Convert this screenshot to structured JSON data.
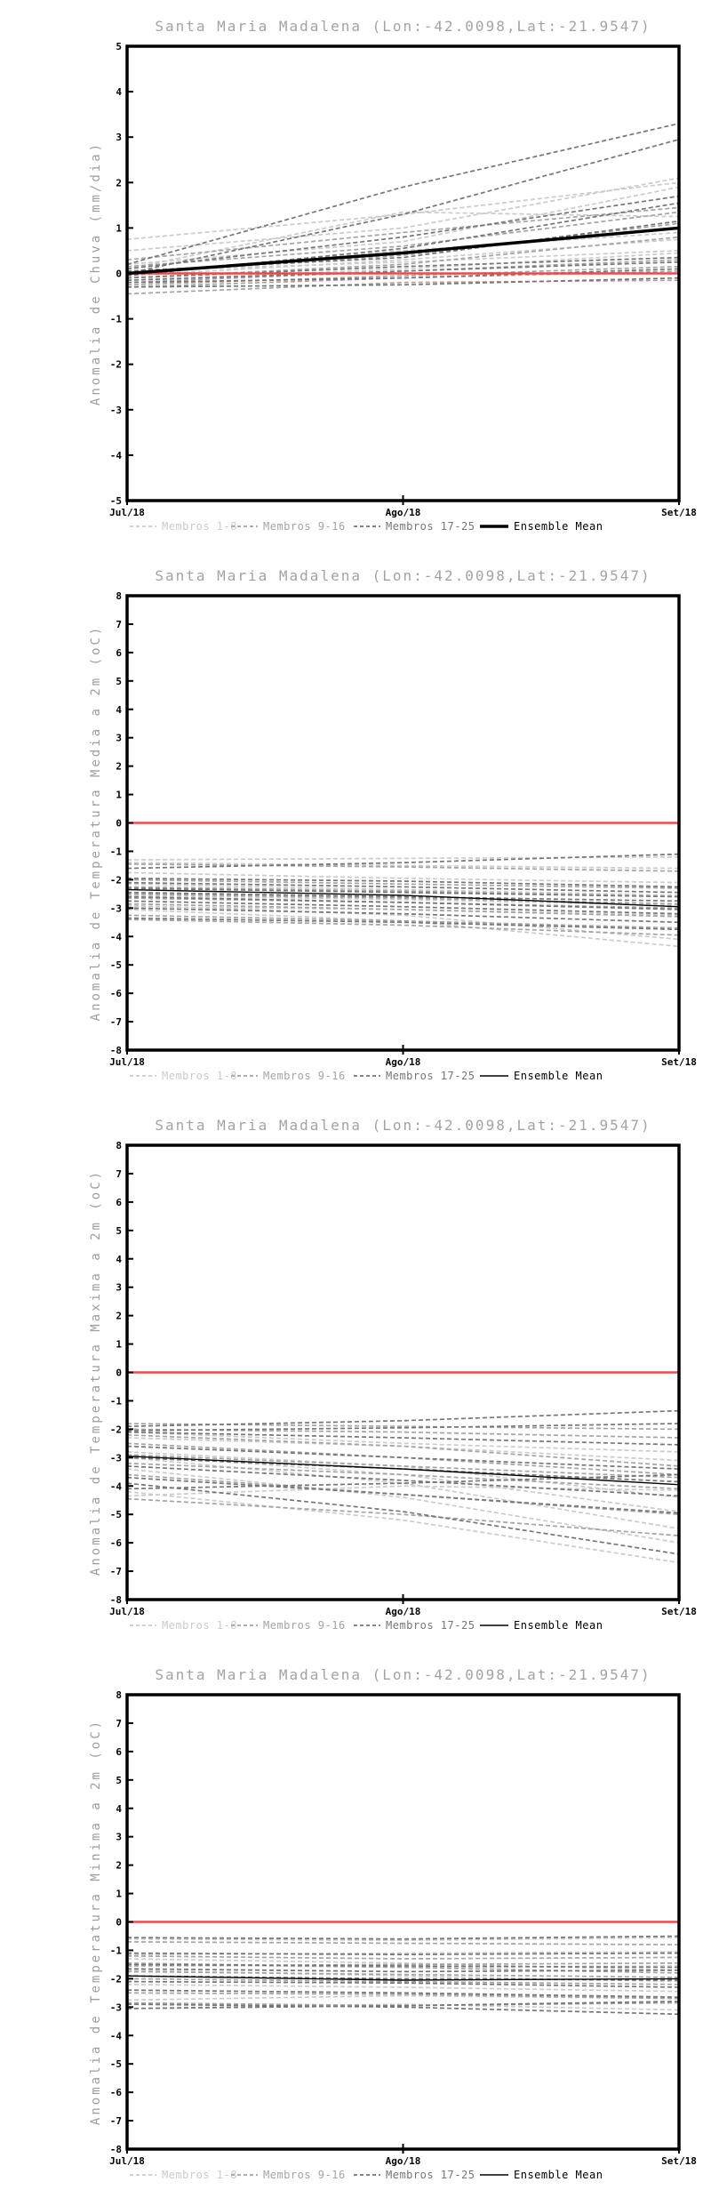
{
  "location": {
    "name": "Santa Maria Madalena",
    "lon": "-42.0098",
    "lat": "-21.9547"
  },
  "chart_data": [
    {
      "type": "line",
      "title": "Santa Maria Madalena (Lon:-42.0098,Lat:-21.9547)",
      "ylabel": "Anomalia de Chuva (mm/dia)",
      "xlabel": "",
      "x_labels": [
        "Jul/18",
        "Ago/18",
        "Set/18"
      ],
      "ylim": [
        -5,
        5
      ],
      "ytick_step": 1,
      "grid": false,
      "legend_position": "bottom",
      "zero_line": {
        "value": 0,
        "color": "#f04848"
      },
      "mean": {
        "label": "Ensemble Mean",
        "color": "#000000",
        "width": 3.5,
        "values": [
          0.0,
          0.45,
          1.0
        ]
      },
      "groups": [
        {
          "label": "Membros 1-8",
          "color": "#cbcbcb",
          "members": [
            [
              0.75,
              1.3,
              2.0
            ],
            [
              0.5,
              1.0,
              2.1
            ],
            [
              0.2,
              0.7,
              1.9
            ],
            [
              0.1,
              1.35,
              1.25
            ],
            [
              0.0,
              0.5,
              0.9
            ],
            [
              -0.05,
              0.3,
              0.75
            ],
            [
              0.05,
              0.25,
              0.5
            ],
            [
              -0.15,
              0.1,
              0.45
            ]
          ]
        },
        {
          "label": "Membros 9-16",
          "color": "#a4a4a4",
          "members": [
            [
              0.3,
              0.9,
              1.45
            ],
            [
              0.15,
              0.6,
              1.35
            ],
            [
              0.0,
              0.4,
              1.1
            ],
            [
              -0.1,
              0.2,
              0.8
            ],
            [
              -0.2,
              0.05,
              0.3
            ],
            [
              -0.25,
              -0.05,
              0.15
            ],
            [
              -0.3,
              -0.1,
              0.05
            ],
            [
              -0.45,
              -0.2,
              -0.15
            ]
          ]
        },
        {
          "label": "Membros 17-25",
          "color": "#767676",
          "members": [
            [
              0.2,
              1.9,
              3.3
            ],
            [
              0.0,
              1.3,
              2.95
            ],
            [
              0.1,
              0.8,
              1.7
            ],
            [
              -0.05,
              0.55,
              1.55
            ],
            [
              0.05,
              0.35,
              1.15
            ],
            [
              -0.1,
              0.15,
              0.35
            ],
            [
              -0.15,
              0.05,
              0.25
            ],
            [
              -0.2,
              -0.1,
              0.1
            ],
            [
              -0.3,
              -0.25,
              -0.1
            ]
          ]
        }
      ]
    },
    {
      "type": "line",
      "title": "Santa Maria Madalena (Lon:-42.0098,Lat:-21.9547)",
      "ylabel": "Anomalia de Temperatura Media a 2m (oC)",
      "xlabel": "",
      "x_labels": [
        "Jul/18",
        "Ago/18",
        "Set/18"
      ],
      "ylim": [
        -8,
        8
      ],
      "ytick_step": 1,
      "grid": false,
      "legend_position": "bottom",
      "zero_line": {
        "value": 0,
        "color": "#f04848"
      },
      "mean": {
        "label": "Ensemble Mean",
        "color": "#000000",
        "width": 1.4,
        "values": [
          -2.35,
          -2.55,
          -2.95
        ]
      },
      "groups": [
        {
          "label": "Membros 1-8",
          "color": "#cbcbcb",
          "members": [
            [
              -1.3,
              -1.25,
              -1.2
            ],
            [
              -1.4,
              -1.5,
              -1.6
            ],
            [
              -2.9,
              -3.25,
              -4.1
            ],
            [
              -3.05,
              -3.45,
              -4.35
            ],
            [
              -2.95,
              -3.05,
              -3.25
            ],
            [
              -2.15,
              -2.35,
              -2.55
            ],
            [
              -1.75,
              -1.95,
              -2.1
            ],
            [
              -2.55,
              -2.7,
              -2.9
            ]
          ]
        },
        {
          "label": "Membros 9-16",
          "color": "#a4a4a4",
          "members": [
            [
              -1.45,
              -1.55,
              -1.7
            ],
            [
              -2.0,
              -2.15,
              -2.3
            ],
            [
              -2.25,
              -2.4,
              -2.6
            ],
            [
              -2.5,
              -2.65,
              -2.85
            ],
            [
              -2.65,
              -2.8,
              -3.0
            ],
            [
              -2.85,
              -3.05,
              -3.3
            ],
            [
              -3.25,
              -3.45,
              -3.7
            ],
            [
              -3.4,
              -3.6,
              -3.95
            ]
          ]
        },
        {
          "label": "Membros 17-25",
          "color": "#767676",
          "members": [
            [
              -1.6,
              -1.4,
              -1.1
            ],
            [
              -1.95,
              -2.05,
              -2.25
            ],
            [
              -2.1,
              -2.25,
              -2.45
            ],
            [
              -2.3,
              -2.45,
              -2.6
            ],
            [
              -2.45,
              -2.6,
              -2.75
            ],
            [
              -2.6,
              -2.8,
              -3.05
            ],
            [
              -2.75,
              -2.95,
              -3.2
            ],
            [
              -3.0,
              -3.2,
              -3.5
            ],
            [
              -3.35,
              -3.5,
              -3.75
            ]
          ]
        }
      ]
    },
    {
      "type": "line",
      "title": "Santa Maria Madalena (Lon:-42.0098,Lat:-21.9547)",
      "ylabel": "Anomalia de Temperatura Maxima a 2m (oC)",
      "xlabel": "",
      "x_labels": [
        "Jul/18",
        "Ago/18",
        "Set/18"
      ],
      "ylim": [
        -8,
        8
      ],
      "ytick_step": 1,
      "grid": false,
      "legend_position": "bottom",
      "zero_line": {
        "value": 0,
        "color": "#f04848"
      },
      "mean": {
        "label": "Ensemble Mean",
        "color": "#000000",
        "width": 1.4,
        "values": [
          -2.95,
          -3.4,
          -3.95
        ]
      },
      "groups": [
        {
          "label": "Membros 1-8",
          "color": "#cbcbcb",
          "members": [
            [
              -2.8,
              -3.3,
              -4.4
            ],
            [
              -2.9,
              -3.6,
              -4.9
            ],
            [
              -3.0,
              -3.9,
              -5.5
            ],
            [
              -3.4,
              -4.4,
              -6.0
            ],
            [
              -4.2,
              -5.2,
              -6.7
            ],
            [
              -2.3,
              -2.6,
              -3.1
            ],
            [
              -2.1,
              -2.5,
              -2.8
            ],
            [
              -4.35,
              -4.0,
              -4.15
            ]
          ]
        },
        {
          "label": "Membros 9-16",
          "color": "#a4a4a4",
          "members": [
            [
              -1.8,
              -1.9,
              -2.0
            ],
            [
              -2.0,
              -2.1,
              -2.3
            ],
            [
              -2.2,
              -2.6,
              -3.3
            ],
            [
              -2.5,
              -3.0,
              -3.6
            ],
            [
              -2.9,
              -3.3,
              -3.7
            ],
            [
              -3.2,
              -3.6,
              -4.1
            ],
            [
              -3.6,
              -4.3,
              -5.0
            ],
            [
              -4.45,
              -5.0,
              -5.75
            ]
          ]
        },
        {
          "label": "Membros 17-25",
          "color": "#767676",
          "members": [
            [
              -1.9,
              -1.7,
              -1.35
            ],
            [
              -2.05,
              -1.95,
              -1.8
            ],
            [
              -2.1,
              -2.3,
              -2.55
            ],
            [
              -2.6,
              -3.0,
              -3.4
            ],
            [
              -3.0,
              -3.4,
              -3.85
            ],
            [
              -3.3,
              -3.8,
              -4.35
            ],
            [
              -3.7,
              -4.3,
              -4.95
            ],
            [
              -3.9,
              -4.9,
              -6.4
            ],
            [
              -4.1,
              -3.9,
              -3.6
            ]
          ]
        }
      ]
    },
    {
      "type": "line",
      "title": "Santa Maria Madalena (Lon:-42.0098,Lat:-21.9547)",
      "ylabel": "Anomalia de Temperatura Minima a 2m (oC)",
      "xlabel": "",
      "x_labels": [
        "Jul/18",
        "Ago/18",
        "Set/18"
      ],
      "ylim": [
        -8,
        8
      ],
      "ytick_step": 1,
      "grid": false,
      "legend_position": "bottom",
      "zero_line": {
        "value": 0,
        "color": "#f04848"
      },
      "mean": {
        "label": "Ensemble Mean",
        "color": "#000000",
        "width": 1.4,
        "values": [
          -1.9,
          -2.05,
          -2.0
        ]
      },
      "groups": [
        {
          "label": "Membros 1-8",
          "color": "#cbcbcb",
          "members": [
            [
              -0.6,
              -0.65,
              -0.55
            ],
            [
              -1.15,
              -1.1,
              -1.05
            ],
            [
              -1.5,
              -1.6,
              -1.55
            ],
            [
              -1.7,
              -1.9,
              -2.1
            ],
            [
              -2.2,
              -2.3,
              -2.45
            ],
            [
              -2.75,
              -2.6,
              -2.7
            ],
            [
              -3.05,
              -2.9,
              -3.1
            ],
            [
              -1.3,
              -1.45,
              -1.7
            ]
          ]
        },
        {
          "label": "Membros 9-16",
          "color": "#a4a4a4",
          "members": [
            [
              -0.7,
              -0.75,
              -0.8
            ],
            [
              -1.2,
              -1.3,
              -1.25
            ],
            [
              -1.55,
              -1.5,
              -1.45
            ],
            [
              -1.75,
              -1.85,
              -1.95
            ],
            [
              -2.0,
              -2.1,
              -2.2
            ],
            [
              -2.5,
              -2.55,
              -2.7
            ],
            [
              -2.85,
              -2.95,
              -2.85
            ],
            [
              -1.45,
              -1.6,
              -1.8
            ]
          ]
        },
        {
          "label": "Membros 17-25",
          "color": "#767676",
          "members": [
            [
              -0.55,
              -0.6,
              -0.5
            ],
            [
              -1.1,
              -1.15,
              -1.1
            ],
            [
              -1.5,
              -1.55,
              -1.6
            ],
            [
              -1.65,
              -1.75,
              -1.7
            ],
            [
              -1.9,
              -2.0,
              -2.05
            ],
            [
              -2.1,
              -2.15,
              -2.3
            ],
            [
              -2.4,
              -2.5,
              -2.65
            ],
            [
              -2.9,
              -3.0,
              -3.25
            ],
            [
              -3.05,
              -2.95,
              -2.8
            ]
          ]
        }
      ]
    }
  ]
}
